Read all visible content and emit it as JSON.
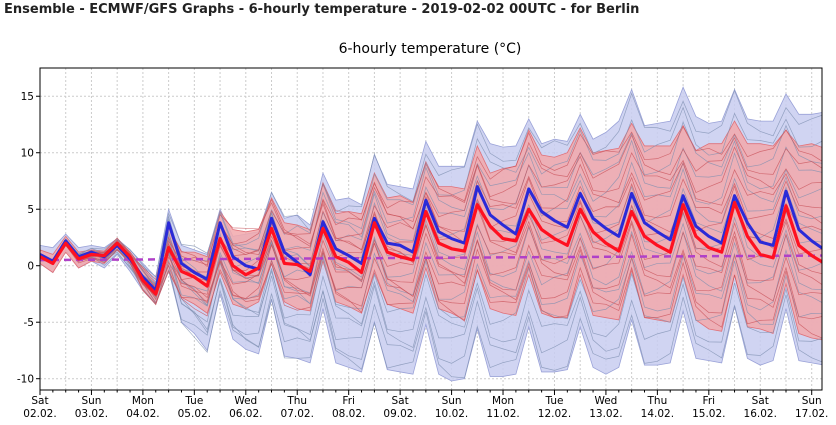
{
  "header": {
    "title": "Ensemble - ECMWF/GFS Graphs - 6-hourly temperature - 2019-02-02 00UTC - for Berlin"
  },
  "chart_data": {
    "type": "line",
    "title": "6-hourly temperature (°C)",
    "xlabel": "",
    "ylabel": "",
    "ylim": [
      -11,
      17.5
    ],
    "yticks": [
      -10,
      -5,
      0,
      5,
      10,
      15
    ],
    "xlim_days": [
      0,
      15.2
    ],
    "day_labels": [
      {
        "day": 0,
        "weekday": "Sat",
        "date": "02.02."
      },
      {
        "day": 1,
        "weekday": "Sun",
        "date": "03.02."
      },
      {
        "day": 2,
        "weekday": "Mon",
        "date": "04.02."
      },
      {
        "day": 3,
        "weekday": "Tue",
        "date": "05.02."
      },
      {
        "day": 4,
        "weekday": "Wed",
        "date": "06.02."
      },
      {
        "day": 5,
        "weekday": "Thu",
        "date": "07.02."
      },
      {
        "day": 6,
        "weekday": "Fri",
        "date": "08.02."
      },
      {
        "day": 7,
        "weekday": "Sat",
        "date": "09.02."
      },
      {
        "day": 8,
        "weekday": "Sun",
        "date": "10.02."
      },
      {
        "day": 9,
        "weekday": "Mon",
        "date": "11.02."
      },
      {
        "day": 10,
        "weekday": "Tue",
        "date": "12.02."
      },
      {
        "day": 11,
        "weekday": "Wed",
        "date": "13.02."
      },
      {
        "day": 12,
        "weekday": "Thu",
        "date": "14.02."
      },
      {
        "day": 13,
        "weekday": "Fri",
        "date": "15.02."
      },
      {
        "day": 14,
        "weekday": "Sat",
        "date": "16.02."
      },
      {
        "day": 15,
        "weekday": "Sun",
        "date": "17.02."
      }
    ],
    "grid": true,
    "colors": {
      "ecmwf_band": "#c8ccf0",
      "gfs_band": "#f2a8ac",
      "ecmwf_members": "#7e8fb0",
      "gfs_members": "#c85058",
      "ecmwf_mean": "#2a2ad8",
      "gfs_mean": "#ff1020",
      "control": "#f07070",
      "climate": "#b040c8"
    },
    "series": [
      {
        "key": "ecmwf_mean",
        "x": [
          0,
          0.25,
          0.5,
          0.75,
          1,
          1.25,
          1.5,
          1.75,
          2,
          2.25,
          2.5,
          2.75,
          3,
          3.25,
          3.5,
          3.75,
          4,
          4.25,
          4.5,
          4.75,
          5,
          5.25,
          5.5,
          5.75,
          6,
          6.25,
          6.5,
          6.75,
          7,
          7.25,
          7.5,
          7.75,
          8,
          8.25,
          8.5,
          8.75,
          9,
          9.25,
          9.5,
          9.75,
          10,
          10.25,
          10.5,
          10.75,
          11,
          11.25,
          11.5,
          11.75,
          12,
          12.25,
          12.5,
          12.75,
          13,
          13.25,
          13.5,
          13.75,
          14,
          14.25,
          14.5,
          14.75,
          15,
          15.25
        ],
        "values": [
          1.0,
          0.4,
          2.2,
          0.8,
          1.2,
          0.8,
          1.8,
          0.6,
          -1.0,
          -2.2,
          3.8,
          0.2,
          -0.6,
          -1.2,
          3.8,
          0.8,
          0.0,
          -0.3,
          4.2,
          1.2,
          0.3,
          -0.8,
          3.9,
          1.5,
          0.9,
          0.2,
          4.2,
          2.0,
          1.8,
          1.2,
          5.8,
          3.0,
          2.4,
          2.0,
          7.0,
          4.5,
          3.6,
          2.8,
          6.8,
          4.8,
          4.0,
          3.4,
          6.4,
          4.2,
          3.3,
          2.6,
          6.4,
          3.8,
          3.0,
          2.3,
          6.2,
          3.5,
          2.6,
          2.0,
          6.2,
          3.8,
          2.1,
          1.8,
          6.6,
          3.2,
          2.2,
          1.4
        ]
      },
      {
        "key": "gfs_mean",
        "x": [
          0,
          0.25,
          0.5,
          0.75,
          1,
          1.25,
          1.5,
          1.75,
          2,
          2.25,
          2.5,
          2.75,
          3,
          3.25,
          3.5,
          3.75,
          4,
          4.25,
          4.5,
          4.75,
          5,
          5.25,
          5.5,
          5.75,
          6,
          6.25,
          6.5,
          6.75,
          7,
          7.25,
          7.5,
          7.75,
          8,
          8.25,
          8.5,
          8.75,
          9,
          9.25,
          9.5,
          9.75,
          10,
          10.25,
          10.5,
          10.75,
          11,
          11.25,
          11.5,
          11.75,
          12,
          12.25,
          12.5,
          12.75,
          13,
          13.25,
          13.5,
          13.75,
          14,
          14.25,
          14.5,
          14.75,
          15,
          15.25
        ],
        "values": [
          0.8,
          0.2,
          2.0,
          0.6,
          1.0,
          0.9,
          2.0,
          0.8,
          -1.3,
          -2.5,
          1.6,
          -0.5,
          -1.0,
          -1.8,
          2.4,
          0.0,
          -0.8,
          -0.2,
          3.3,
          0.2,
          0.1,
          -0.5,
          3.3,
          0.8,
          0.3,
          -0.6,
          3.8,
          1.2,
          0.8,
          0.5,
          4.8,
          2.0,
          1.5,
          1.3,
          5.4,
          3.5,
          2.4,
          2.2,
          5.0,
          3.2,
          2.4,
          1.8,
          5.0,
          3.0,
          2.0,
          1.3,
          4.8,
          2.6,
          1.8,
          1.2,
          5.4,
          2.6,
          1.6,
          1.2,
          5.6,
          2.6,
          1.0,
          0.7,
          5.3,
          1.8,
          0.9,
          0.2
        ]
      },
      {
        "key": "climate",
        "x": [
          0,
          15.2
        ],
        "values": [
          0.5,
          0.9
        ]
      }
    ],
    "ensemble_spread": {
      "ecmwf_upper": [
        1.8,
        1.6,
        2.8,
        1.6,
        1.8,
        1.6,
        2.4,
        1.4,
        0.2,
        -1.0,
        5.0,
        1.8,
        1.4,
        1.0,
        5.0,
        2.6,
        2.8,
        3.0,
        6.5,
        4.2,
        4.5,
        3.6,
        8.2,
        5.8,
        6.0,
        5.4,
        9.8,
        7.2,
        7.0,
        6.8,
        11.0,
        8.8,
        8.8,
        8.8,
        12.8,
        10.8,
        10.5,
        10.6,
        13.0,
        10.8,
        11.2,
        11.0,
        13.4,
        11.2,
        11.8,
        12.8,
        15.6,
        12.4,
        12.6,
        12.8,
        15.8,
        13.2,
        12.6,
        12.8,
        15.6,
        13.0,
        12.8,
        12.8,
        15.2,
        13.4,
        13.4,
        13.6
      ],
      "ecmwf_lower": [
        0.2,
        -0.6,
        1.4,
        -0.2,
        0.4,
        -0.2,
        1.0,
        -0.5,
        -2.2,
        -3.4,
        -0.4,
        -5.0,
        -6.0,
        -7.5,
        -2.5,
        -6.5,
        -7.4,
        -7.8,
        -3.0,
        -8.0,
        -8.2,
        -8.6,
        -3.8,
        -8.6,
        -9.0,
        -9.4,
        -5.0,
        -9.2,
        -9.4,
        -9.6,
        -5.2,
        -9.6,
        -10.2,
        -10.0,
        -5.6,
        -9.8,
        -9.8,
        -9.6,
        -5.4,
        -9.4,
        -9.4,
        -9.2,
        -5.4,
        -9.0,
        -9.6,
        -9.0,
        -4.8,
        -8.8,
        -8.8,
        -8.6,
        -4.0,
        -8.2,
        -8.4,
        -8.6,
        -3.6,
        -8.2,
        -8.8,
        -8.4,
        -3.8,
        -8.4,
        -8.6,
        -8.8
      ],
      "gfs_upper": [
        1.4,
        1.0,
        2.6,
        1.2,
        1.4,
        1.3,
        2.4,
        1.2,
        -0.2,
        -1.6,
        3.4,
        1.2,
        1.2,
        0.8,
        4.8,
        3.2,
        3.0,
        3.2,
        6.0,
        3.8,
        3.6,
        3.2,
        7.2,
        4.6,
        4.8,
        4.6,
        8.2,
        6.0,
        6.2,
        5.6,
        9.0,
        7.0,
        7.0,
        6.8,
        10.6,
        8.2,
        8.6,
        8.8,
        12.0,
        9.8,
        9.6,
        10.0,
        12.2,
        10.0,
        10.2,
        10.4,
        12.6,
        10.6,
        10.6,
        10.6,
        12.4,
        10.2,
        10.8,
        10.8,
        12.8,
        10.8,
        10.8,
        10.6,
        12.0,
        10.6,
        10.8,
        10.4
      ],
      "gfs_lower": [
        0.2,
        -0.6,
        1.2,
        -0.2,
        0.4,
        0.2,
        1.4,
        0.2,
        -2.2,
        -3.4,
        -0.4,
        -2.8,
        -3.4,
        -4.2,
        -0.6,
        -3.4,
        -3.8,
        -3.2,
        0.2,
        -3.2,
        -3.8,
        -4.0,
        0.4,
        -3.2,
        -3.6,
        -4.2,
        -0.4,
        -3.4,
        -3.8,
        -4.2,
        -0.2,
        -3.8,
        -4.2,
        -4.8,
        -0.4,
        -3.8,
        -4.2,
        -4.4,
        -0.8,
        -4.2,
        -4.6,
        -4.6,
        -0.8,
        -4.4,
        -4.6,
        -4.8,
        -0.4,
        -4.6,
        -4.8,
        -5.0,
        -0.8,
        -4.8,
        -5.6,
        -5.8,
        -0.8,
        -5.4,
        -5.6,
        -6.0,
        -1.6,
        -6.0,
        -6.4,
        -6.6
      ]
    }
  }
}
